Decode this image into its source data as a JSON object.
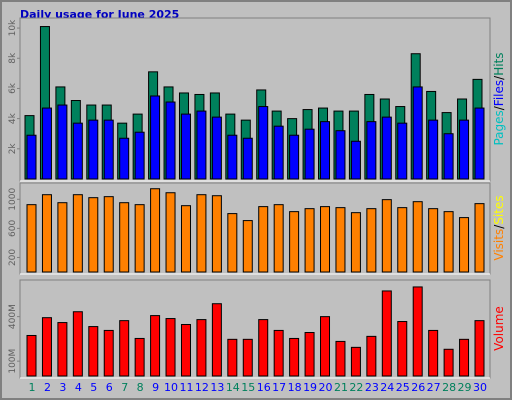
{
  "chart_data": [
    {
      "type": "bar",
      "title": "Daily usage for June 2025",
      "legend_separator": "/",
      "series": [
        {
          "name": "Pages",
          "color": "#00c0c0",
          "values": [
            null,
            null,
            null,
            null,
            null,
            null,
            null,
            null,
            null,
            null,
            null,
            null,
            null,
            null,
            null,
            null,
            null,
            null,
            null,
            null,
            null,
            null,
            null,
            null,
            null,
            null,
            null,
            null,
            null,
            null
          ]
        },
        {
          "name": "Files",
          "color": "#0000ff",
          "values": [
            2900,
            4700,
            4900,
            3700,
            3900,
            3900,
            2700,
            3100,
            5500,
            5100,
            4300,
            4500,
            4100,
            2900,
            2700,
            4800,
            3500,
            2900,
            3300,
            3800,
            3200,
            2500,
            3800,
            4100,
            3700,
            6100,
            3900,
            3000,
            3900,
            4700
          ]
        },
        {
          "name": "Hits",
          "color": "#00805c",
          "values": [
            4200,
            10100,
            6100,
            5200,
            4900,
            4900,
            3700,
            4300,
            7100,
            6100,
            5700,
            5600,
            5700,
            4300,
            3900,
            5900,
            4500,
            4000,
            4600,
            4700,
            4500,
            4500,
            5600,
            5300,
            4800,
            8300,
            5800,
            4400,
            5300,
            6600
          ]
        }
      ],
      "ylim": [
        0,
        10600
      ],
      "yticks": [
        {
          "value": 2000,
          "label": "2k"
        },
        {
          "value": 4000,
          "label": "4k"
        },
        {
          "value": 6000,
          "label": "6k"
        },
        {
          "value": 8000,
          "label": "8k"
        },
        {
          "value": 10000,
          "label": "10k"
        }
      ]
    },
    {
      "type": "bar",
      "legend_separator": "/",
      "series": [
        {
          "name": "Visits",
          "color": "#ff8000",
          "values": [
            926,
            1063,
            953,
            1063,
            1022,
            1036,
            953,
            926,
            1145,
            1090,
            912,
            1063,
            1049,
            803,
            707,
            899,
            926,
            830,
            871,
            899,
            885,
            816,
            871,
            995,
            885,
            967,
            871,
            830,
            748,
            940
          ]
        },
        {
          "name": "Sites",
          "color": "#ffff00",
          "values": [
            null,
            null,
            null,
            null,
            null,
            null,
            null,
            null,
            null,
            null,
            null,
            null,
            null,
            null,
            null,
            null,
            null,
            null,
            null,
            null,
            null,
            null,
            null,
            null,
            null,
            null,
            null,
            null,
            null,
            null
          ]
        }
      ],
      "ylim": [
        0,
        1210
      ],
      "yticks": [
        200,
        600,
        1000
      ]
    },
    {
      "type": "bar",
      "categories": [
        "1",
        "2",
        "3",
        "4",
        "5",
        "6",
        "7",
        "8",
        "9",
        "10",
        "11",
        "12",
        "13",
        "14",
        "15",
        "16",
        "17",
        "18",
        "19",
        "20",
        "21",
        "22",
        "23",
        "24",
        "25",
        "26",
        "27",
        "28",
        "29",
        "30"
      ],
      "category_colors": [
        "#00805c",
        "#0000ff",
        "#0000ff",
        "#0000ff",
        "#0000ff",
        "#0000ff",
        "#00805c",
        "#00805c",
        "#0000ff",
        "#0000ff",
        "#0000ff",
        "#0000ff",
        "#0000ff",
        "#00805c",
        "#00805c",
        "#0000ff",
        "#0000ff",
        "#0000ff",
        "#0000ff",
        "#0000ff",
        "#00805c",
        "#00805c",
        "#0000ff",
        "#0000ff",
        "#0000ff",
        "#0000ff",
        "#0000ff",
        "#00805c",
        "#00805c",
        "#0000ff"
      ],
      "series": [
        {
          "name": "Volume",
          "color": "#ff0000",
          "values": [
            273,
            393,
            360,
            433,
            333,
            307,
            373,
            253,
            407,
            387,
            347,
            380,
            487,
            247,
            247,
            380,
            307,
            253,
            293,
            400,
            233,
            193,
            267,
            573,
            367,
            600,
            307,
            180,
            247,
            373
          ]
        }
      ],
      "ylim": [
        0,
        640
      ],
      "yticks": [
        {
          "value": 100,
          "label": "100M"
        },
        {
          "value": 400,
          "label": "400M"
        }
      ]
    }
  ]
}
